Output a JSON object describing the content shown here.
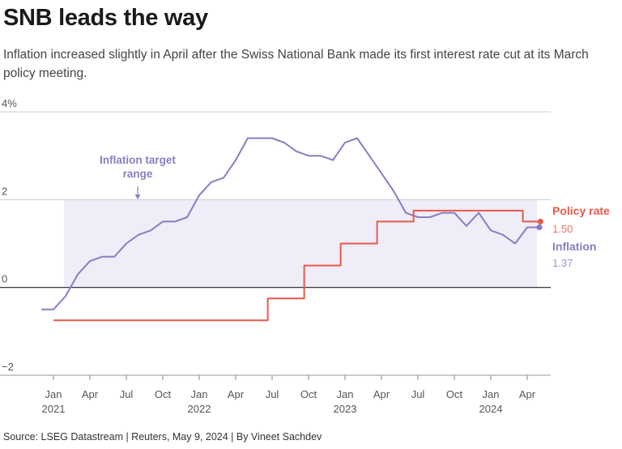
{
  "header": {
    "title": "SNB leads the way",
    "subtitle": "Inflation increased slightly in April after the Swiss National Bank made its first interest rate cut at its March policy meeting."
  },
  "footer": {
    "source": "Source: LSEG Datastream | Reuters, May 9, 2024 | By Vineet Sachdev"
  },
  "colors": {
    "inflation": "#8b7cc4",
    "policy": "#e8594a",
    "band": "#efedf8",
    "axis": "#222222",
    "grid": "#cccccc"
  },
  "chart_data": {
    "type": "line",
    "title": "SNB leads the way",
    "ylim": [
      -2,
      4
    ],
    "xlim": [
      2021.0,
      2024.42
    ],
    "yticks": [
      {
        "value": 4,
        "label": "4%"
      },
      {
        "value": 2,
        "label": "2"
      },
      {
        "value": 0,
        "label": "0"
      },
      {
        "value": -2,
        "label": "−2"
      }
    ],
    "xticks": [
      {
        "value": 2021.0,
        "label": "Jan",
        "year": "2021"
      },
      {
        "value": 2021.25,
        "label": "Apr"
      },
      {
        "value": 2021.5,
        "label": "Jul"
      },
      {
        "value": 2021.75,
        "label": "Oct"
      },
      {
        "value": 2022.0,
        "label": "Jan",
        "year": "2022"
      },
      {
        "value": 2022.25,
        "label": "Apr"
      },
      {
        "value": 2022.5,
        "label": "Jul"
      },
      {
        "value": 2022.75,
        "label": "Oct"
      },
      {
        "value": 2023.0,
        "label": "Jan",
        "year": "2023"
      },
      {
        "value": 2023.25,
        "label": "Apr"
      },
      {
        "value": 2023.5,
        "label": "Jul"
      },
      {
        "value": 2023.75,
        "label": "Oct"
      },
      {
        "value": 2024.0,
        "label": "Jan",
        "year": "2024"
      },
      {
        "value": 2024.25,
        "label": "Apr"
      }
    ],
    "band": {
      "label": "Inflation target range",
      "label_lines": [
        "Inflation target",
        "range"
      ],
      "from": 0,
      "to": 2
    },
    "series": [
      {
        "name": "Inflation",
        "last_value": "1.37",
        "x": [
          2020.917,
          2021.0,
          2021.083,
          2021.167,
          2021.25,
          2021.333,
          2021.417,
          2021.5,
          2021.583,
          2021.667,
          2021.75,
          2021.833,
          2021.917,
          2022.0,
          2022.083,
          2022.167,
          2022.25,
          2022.333,
          2022.417,
          2022.5,
          2022.583,
          2022.667,
          2022.75,
          2022.833,
          2022.917,
          2023.0,
          2023.083,
          2023.167,
          2023.25,
          2023.333,
          2023.417,
          2023.5,
          2023.583,
          2023.667,
          2023.75,
          2023.833,
          2023.917,
          2024.0,
          2024.083,
          2024.167,
          2024.25,
          2024.333
        ],
        "values": [
          -0.5,
          -0.5,
          -0.2,
          0.3,
          0.6,
          0.7,
          0.7,
          1.0,
          1.2,
          1.3,
          1.5,
          1.5,
          1.6,
          2.1,
          2.4,
          2.5,
          2.9,
          3.4,
          3.4,
          3.4,
          3.3,
          3.1,
          3.0,
          3.0,
          2.9,
          3.3,
          3.4,
          3.0,
          2.6,
          2.2,
          1.7,
          1.6,
          1.6,
          1.7,
          1.7,
          1.4,
          1.7,
          1.3,
          1.2,
          1.0,
          1.37,
          1.37
        ]
      },
      {
        "name": "Policy rate",
        "last_value": "1.50",
        "step": true,
        "x": [
          2021.0,
          2022.47,
          2022.47,
          2022.72,
          2022.72,
          2022.97,
          2022.97,
          2023.22,
          2023.22,
          2023.47,
          2023.47,
          2024.22,
          2024.22,
          2024.34
        ],
        "values": [
          -0.75,
          -0.75,
          -0.25,
          -0.25,
          0.5,
          0.5,
          1.0,
          1.0,
          1.5,
          1.5,
          1.75,
          1.75,
          1.5,
          1.5
        ]
      }
    ]
  }
}
